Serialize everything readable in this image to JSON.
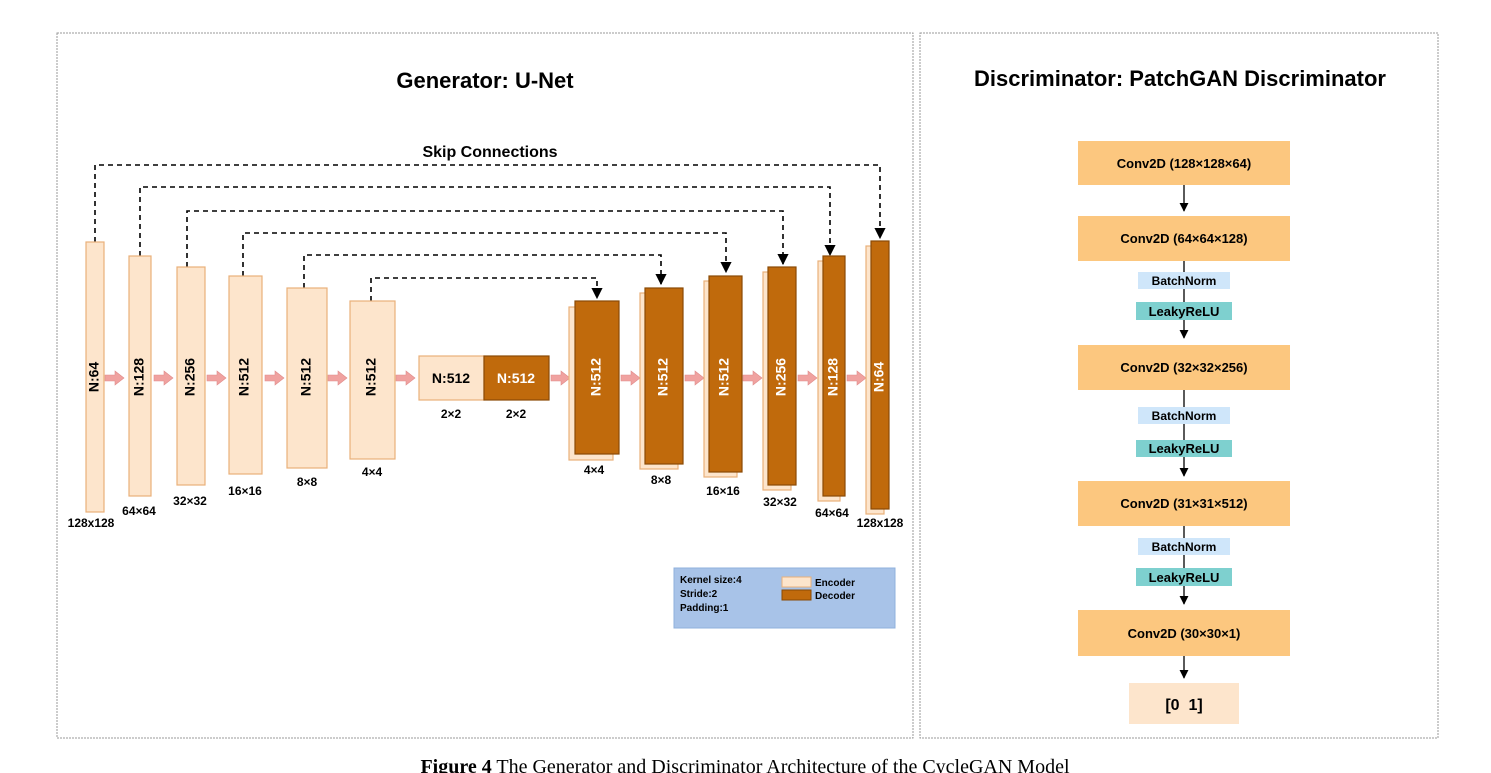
{
  "generator": {
    "title": "Generator: U-Net",
    "skip_label": "Skip Connections",
    "encoder_blocks": [
      {
        "label": "N:64",
        "size": "128x128"
      },
      {
        "label": "N:128",
        "size": "64×64"
      },
      {
        "label": "N:256",
        "size": "32×32"
      },
      {
        "label": "N:512",
        "size": "16×16"
      },
      {
        "label": "N:512",
        "size": "8×8"
      },
      {
        "label": "N:512",
        "size": "4×4"
      }
    ],
    "bottleneck": [
      {
        "label": "N:512",
        "size": "2×2"
      },
      {
        "label": "N:512",
        "size": "2×2"
      }
    ],
    "decoder_blocks": [
      {
        "label": "N:512",
        "size": "4×4"
      },
      {
        "label": "N:512",
        "size": "8×8"
      },
      {
        "label": "N:512",
        "size": "16×16"
      },
      {
        "label": "N:256",
        "size": "32×32"
      },
      {
        "label": "N:128",
        "size": "64×64"
      },
      {
        "label": "N:64",
        "size": "128x128"
      }
    ],
    "legend": {
      "kernel": "Kernel size:4",
      "stride": "Stride:2",
      "padding": "Padding:1",
      "encoder": "Encoder",
      "decoder": "Decoder"
    }
  },
  "discriminator": {
    "title": "Discriminator: PatchGAN Discriminator",
    "layers": [
      "Conv2D (128×128×64)",
      "Conv2D (64×64×128)",
      "Conv2D (32×32×256)",
      "Conv2D (31×31×512)",
      "Conv2D (30×30×1)"
    ],
    "batchnorm": "BatchNorm",
    "leakyrelu": "LeakyReLU",
    "output": "[0  1]"
  },
  "caption": {
    "label": "Figure 4",
    "text": " The Generator and Discriminator Architecture of the CycleGAN Model"
  },
  "colors": {
    "encoder_fill": "#fde5cc",
    "encoder_stroke": "#e9b07a",
    "decoder_fill": "#c06a0c",
    "decoder_stroke": "#8a4a05",
    "arrow": "#f0a2a0",
    "conv_fill": "#fcc77f",
    "norm_fill": "#cfe6fa",
    "relu_fill": "#7ed0cf",
    "legend_bg": "#a8c3e8"
  }
}
